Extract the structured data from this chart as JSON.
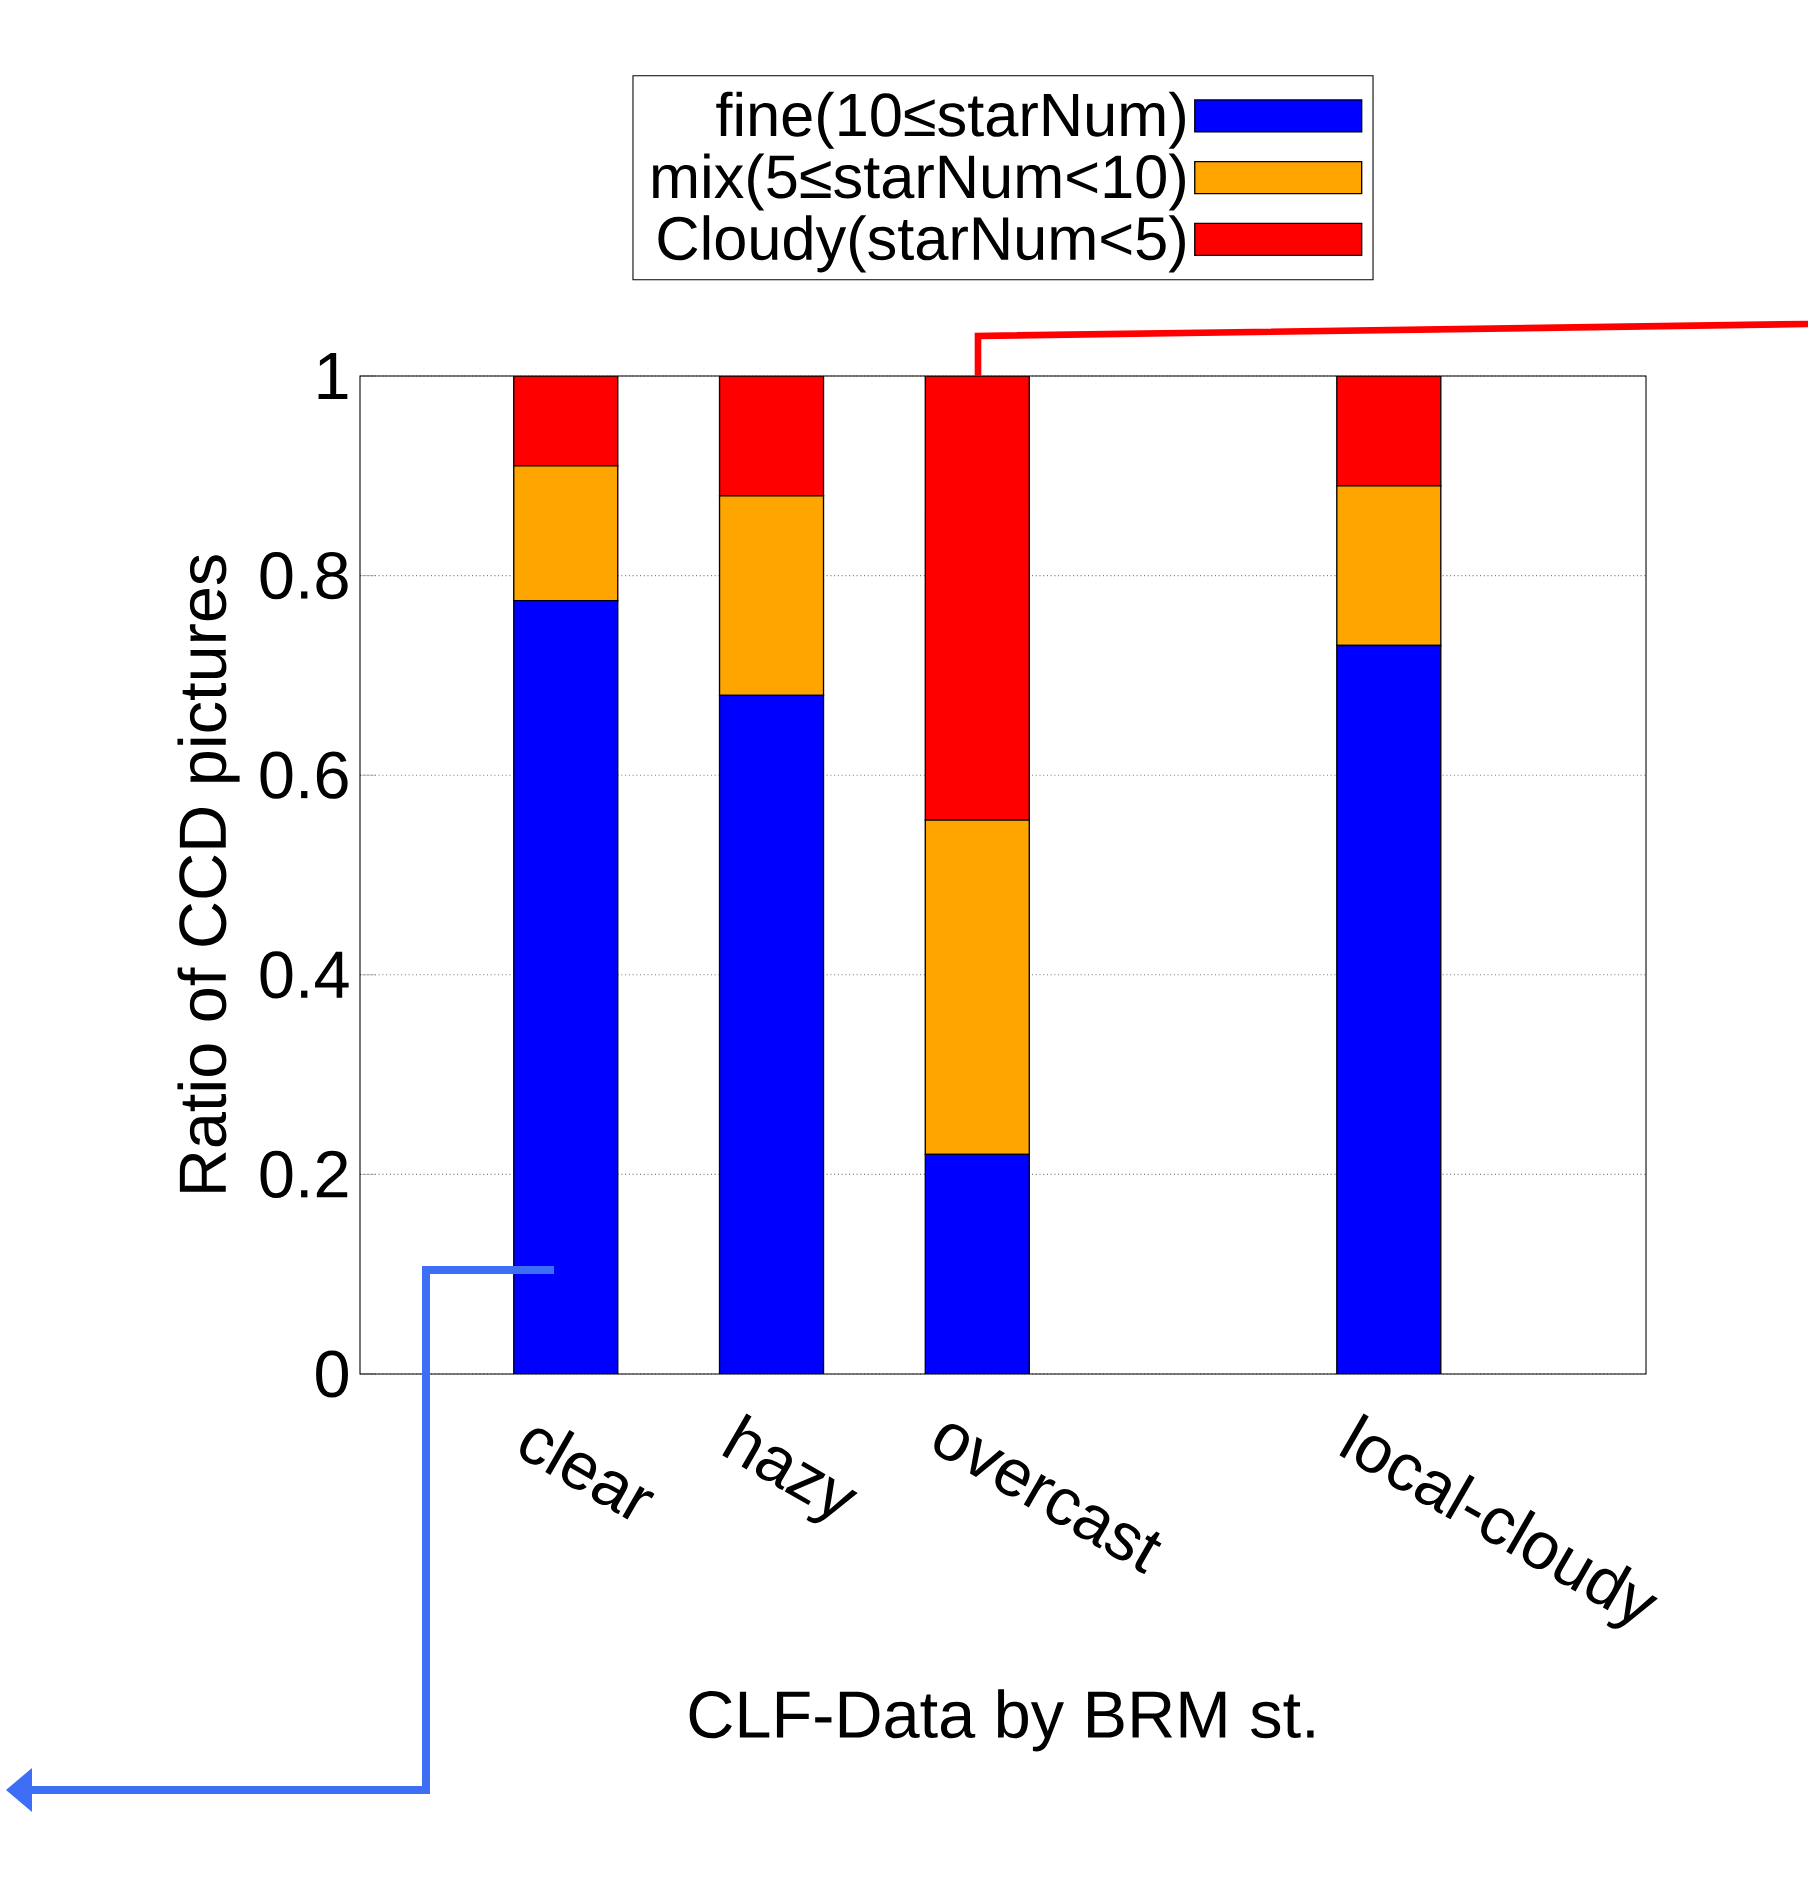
{
  "chart_data": {
    "type": "bar",
    "stacked": true,
    "xlabel": "CLF-Data by BRM st.",
    "ylabel": "Ratio of CCD pictures",
    "categories": [
      "clear",
      "hazy",
      "overcast",
      null,
      "local-cloudy"
    ],
    "series": [
      {
        "name": "fine(10≤starNum)",
        "color": "#0000ff",
        "values": [
          0.775,
          0.68,
          0.22,
          null,
          0.73
        ]
      },
      {
        "name": "mix(5≤starNum<10)",
        "color": "#ffa500",
        "values": [
          0.135,
          0.2,
          0.335,
          null,
          0.16
        ]
      },
      {
        "name": "Cloudy(starNum<5)",
        "color": "#ff0000",
        "values": [
          0.09,
          0.12,
          0.445,
          null,
          0.11
        ]
      }
    ],
    "ylim": [
      0,
      1
    ],
    "yticks": [
      0,
      0.2,
      0.4,
      0.6,
      0.8,
      1
    ],
    "grid": "y",
    "legend": "top"
  }
}
